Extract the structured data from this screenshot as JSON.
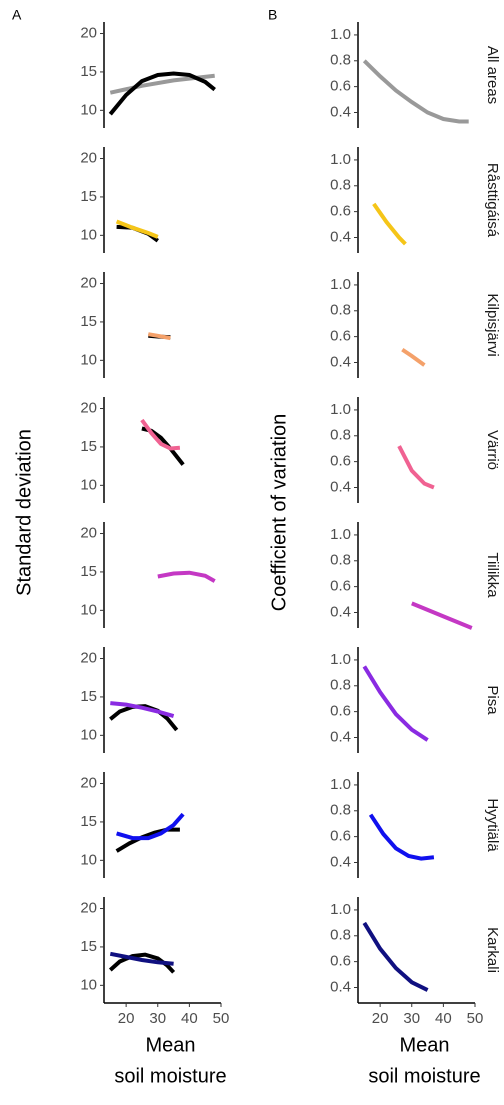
{
  "chart_data": [
    {
      "type": "line",
      "label": "A",
      "ylabel": "Standard deviation",
      "xlabel": [
        "Mean",
        "soil moisture"
      ],
      "xlim": [
        13,
        50
      ],
      "xticks": [
        20,
        30,
        40,
        50
      ],
      "ylim": [
        7.7,
        21.5
      ],
      "yticks": [
        10,
        15,
        20
      ],
      "panels": [
        {
          "series": [
            {
              "color": "#999999",
              "x": [
                15,
                25,
                35,
                48
              ],
              "values": [
                12.3,
                13.2,
                13.9,
                14.5
              ]
            },
            {
              "color": "#000000",
              "x": [
                15,
                20,
                25,
                30,
                35,
                40,
                45,
                48
              ],
              "values": [
                9.5,
                12,
                13.8,
                14.6,
                14.8,
                14.6,
                13.7,
                12.7
              ]
            }
          ]
        },
        {
          "series": [
            {
              "color": "#000000",
              "x": [
                17,
                22,
                27,
                30
              ],
              "values": [
                11.1,
                11,
                10.2,
                9.3
              ]
            },
            {
              "color": "#f5c518",
              "x": [
                17,
                22,
                27,
                30
              ],
              "values": [
                11.8,
                11,
                10.3,
                9.8
              ]
            }
          ]
        },
        {
          "series": [
            {
              "color": "#000000",
              "x": [
                27,
                30,
                34
              ],
              "values": [
                13.2,
                13.1,
                13.0
              ]
            },
            {
              "color": "#f4a16a",
              "x": [
                27,
                30,
                34
              ],
              "values": [
                13.4,
                13.2,
                12.9
              ]
            }
          ]
        },
        {
          "series": [
            {
              "color": "#000000",
              "x": [
                25,
                28,
                31,
                34,
                38
              ],
              "values": [
                17.4,
                17.1,
                16.2,
                14.8,
                12.7
              ]
            },
            {
              "color": "#f06292",
              "x": [
                25,
                28,
                31,
                34,
                37
              ],
              "values": [
                18.5,
                16.8,
                15.4,
                14.8,
                14.9
              ]
            }
          ]
        },
        {
          "series": [
            {
              "color": "#c438c4",
              "x": [
                30,
                35,
                40,
                45,
                48
              ],
              "values": [
                14.4,
                14.8,
                14.9,
                14.5,
                13.8
              ]
            }
          ]
        },
        {
          "series": [
            {
              "color": "#000000",
              "x": [
                15,
                18,
                22,
                26,
                30,
                33,
                36
              ],
              "values": [
                12.1,
                13.1,
                13.7,
                13.8,
                13.2,
                12.2,
                10.7
              ]
            },
            {
              "color": "#8a2be2",
              "x": [
                15,
                20,
                25,
                30,
                35
              ],
              "values": [
                14.2,
                14,
                13.6,
                13.1,
                12.5
              ]
            }
          ]
        },
        {
          "series": [
            {
              "color": "#000000",
              "x": [
                17,
                21,
                25,
                29,
                33,
                37
              ],
              "values": [
                11.2,
                12.2,
                13.0,
                13.6,
                14.0,
                14.0
              ]
            },
            {
              "color": "#1010ee",
              "x": [
                17,
                22,
                27,
                31,
                35,
                38
              ],
              "values": [
                13.5,
                12.9,
                12.9,
                13.5,
                14.6,
                16
              ]
            }
          ]
        },
        {
          "series": [
            {
              "color": "#000000",
              "x": [
                15,
                18,
                22,
                26,
                30,
                33,
                35
              ],
              "values": [
                12.0,
                13.1,
                13.8,
                14.0,
                13.5,
                12.6,
                11.7
              ]
            },
            {
              "color": "#101080",
              "x": [
                15,
                20,
                25,
                30,
                35
              ],
              "values": [
                14.1,
                13.7,
                13.3,
                13.0,
                12.8
              ]
            }
          ]
        }
      ]
    },
    {
      "type": "line",
      "label": "B",
      "ylabel": "Coefficient of variation",
      "xlabel": [
        "Mean",
        "soil moisture"
      ],
      "xlim": [
        13,
        50
      ],
      "xticks": [
        20,
        30,
        40,
        50
      ],
      "ylim": [
        0.28,
        1.1
      ],
      "yticks": [
        0.4,
        0.6,
        0.8,
        {
          "value": 1,
          "label": "1.0"
        }
      ],
      "panels": [
        {
          "title": "All areas",
          "series": [
            {
              "color": "#999999",
              "x": [
                15,
                20,
                25,
                30,
                35,
                40,
                45,
                48
              ],
              "values": [
                0.8,
                0.68,
                0.57,
                0.48,
                0.4,
                0.35,
                0.33,
                0.33
              ]
            }
          ]
        },
        {
          "title": "Råsttigáisá",
          "series": [
            {
              "color": "#f5c518",
              "x": [
                18,
                22,
                26,
                28
              ],
              "values": [
                0.66,
                0.52,
                0.4,
                0.35
              ]
            }
          ]
        },
        {
          "title": "Kilpisjärvi",
          "series": [
            {
              "color": "#f4a16a",
              "x": [
                27,
                30,
                34
              ],
              "values": [
                0.5,
                0.45,
                0.38
              ]
            }
          ]
        },
        {
          "title": "Värriö",
          "series": [
            {
              "color": "#f06292",
              "x": [
                26,
                30,
                34,
                37
              ],
              "values": [
                0.72,
                0.53,
                0.43,
                0.4
              ]
            }
          ]
        },
        {
          "title": "Tiilikka",
          "series": [
            {
              "color": "#c438c4",
              "x": [
                30,
                40,
                49
              ],
              "values": [
                0.47,
                0.37,
                0.28
              ]
            }
          ]
        },
        {
          "title": "Pisa",
          "series": [
            {
              "color": "#8a2be2",
              "x": [
                15,
                20,
                25,
                30,
                35
              ],
              "values": [
                0.95,
                0.75,
                0.58,
                0.46,
                0.38
              ]
            }
          ]
        },
        {
          "title": "Hyytiälä",
          "series": [
            {
              "color": "#1010ee",
              "x": [
                17,
                21,
                25,
                29,
                33,
                37
              ],
              "values": [
                0.77,
                0.62,
                0.51,
                0.45,
                0.43,
                0.44
              ]
            }
          ]
        },
        {
          "title": "Karkali",
          "series": [
            {
              "color": "#101080",
              "x": [
                15,
                20,
                25,
                30,
                35
              ],
              "values": [
                0.9,
                0.7,
                0.55,
                0.44,
                0.38
              ]
            }
          ]
        }
      ]
    }
  ]
}
